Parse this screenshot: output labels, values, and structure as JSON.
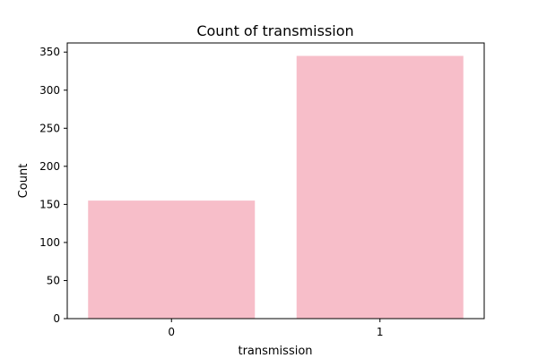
{
  "chart_data": {
    "type": "bar",
    "title": "Count of transmission",
    "xlabel": "transmission",
    "ylabel": "Count",
    "categories": [
      "0",
      "1"
    ],
    "values": [
      155,
      345
    ],
    "ylim": [
      0,
      362
    ],
    "yticks": [
      0,
      50,
      100,
      150,
      200,
      250,
      300,
      350
    ],
    "bar_color": "#F7BEC9",
    "grid": false,
    "legend": "none"
  }
}
